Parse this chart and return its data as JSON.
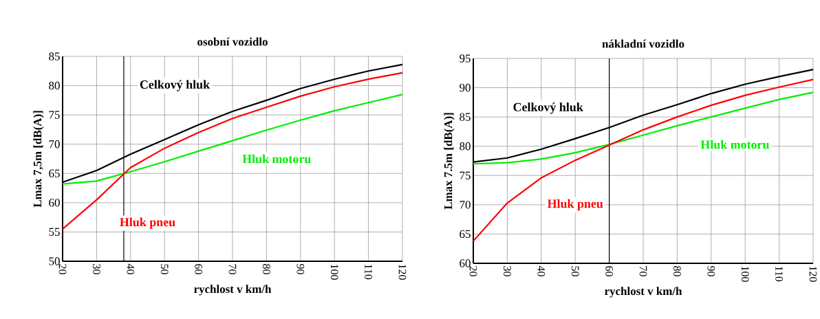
{
  "chart_data": [
    {
      "type": "line",
      "title": "osobní vozidlo",
      "xlabel": "rychlost v km/h",
      "ylabel": "Lmax 7,5m [dB(A)]",
      "x": [
        20,
        30,
        40,
        50,
        60,
        70,
        80,
        90,
        100,
        110,
        120
      ],
      "series": [
        {
          "name": "Celkový hluk",
          "color": "#000000",
          "values": [
            63.5,
            65.5,
            68.3,
            70.8,
            73.3,
            75.6,
            77.5,
            79.5,
            81.1,
            82.5,
            83.6
          ]
        },
        {
          "name": "Hluk motoru",
          "color": "#00ee00",
          "values": [
            63.2,
            63.7,
            65.3,
            67.0,
            68.8,
            70.6,
            72.4,
            74.1,
            75.7,
            77.1,
            78.5
          ]
        },
        {
          "name": "Hluk pneu",
          "color": "#ff0000",
          "values": [
            55.5,
            60.5,
            66.0,
            69.3,
            72.0,
            74.4,
            76.3,
            78.2,
            79.8,
            81.1,
            82.2
          ]
        }
      ],
      "xlim": [
        20,
        120
      ],
      "ylim": [
        50,
        85
      ],
      "xticks": [
        20,
        30,
        40,
        50,
        60,
        70,
        80,
        90,
        100,
        110,
        120
      ],
      "yticks": [
        50,
        55,
        60,
        65,
        70,
        75,
        80,
        85
      ],
      "grid": true,
      "ref_lines": [
        {
          "axis": "x",
          "value": 38,
          "color": "#000000"
        }
      ]
    },
    {
      "type": "line",
      "title": "nákladní vozidlo",
      "xlabel": "rychlost v km/h",
      "ylabel": "Lmax 7.5m [dB(A)]",
      "x": [
        20,
        30,
        40,
        50,
        60,
        70,
        80,
        90,
        100,
        110,
        120
      ],
      "series": [
        {
          "name": "Celkový hluk",
          "color": "#000000",
          "values": [
            77.3,
            78.0,
            79.5,
            81.3,
            83.2,
            85.3,
            87.1,
            89.0,
            90.6,
            91.9,
            93.1
          ]
        },
        {
          "name": "Hluk motoru",
          "color": "#00ee00",
          "values": [
            77.0,
            77.2,
            77.8,
            78.9,
            80.3,
            81.9,
            83.5,
            85.0,
            86.5,
            88.0,
            89.2
          ]
        },
        {
          "name": "Hluk pneu",
          "color": "#ff0000",
          "values": [
            63.8,
            70.3,
            74.6,
            77.6,
            80.2,
            82.8,
            85.0,
            87.0,
            88.7,
            90.1,
            91.4
          ]
        }
      ],
      "xlim": [
        20,
        120
      ],
      "ylim": [
        60,
        95
      ],
      "xticks": [
        20,
        30,
        40,
        50,
        60,
        70,
        80,
        90,
        100,
        110,
        120
      ],
      "yticks": [
        60,
        65,
        70,
        75,
        80,
        85,
        90,
        95
      ],
      "grid": true,
      "ref_lines": [
        {
          "axis": "x",
          "value": 60,
          "color": "#000000"
        }
      ]
    }
  ]
}
